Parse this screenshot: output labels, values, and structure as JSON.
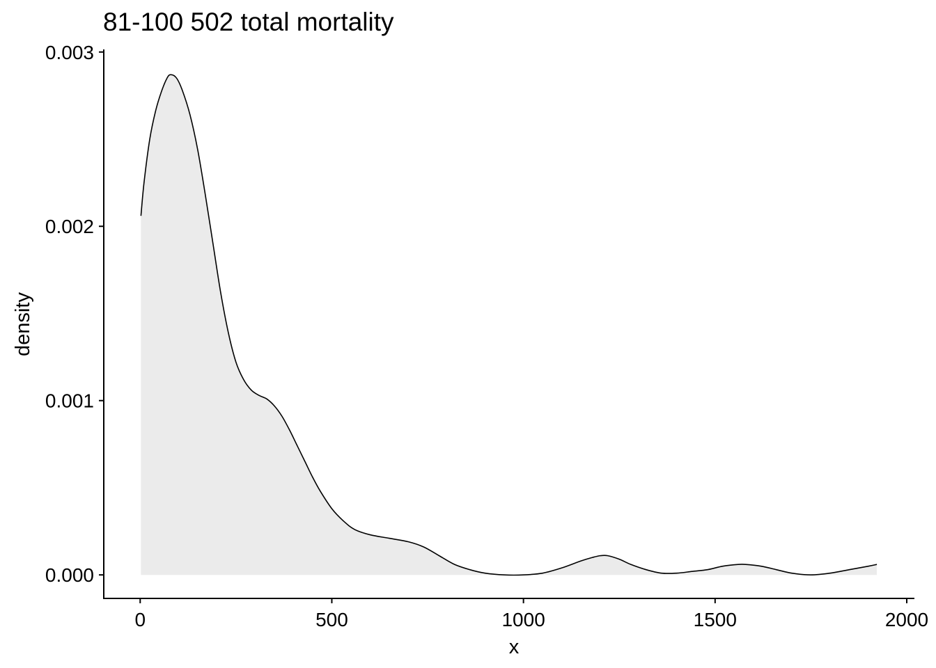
{
  "chart_data": {
    "type": "area",
    "title": "81-100 502 total mortality",
    "xlabel": "x",
    "ylabel": "density",
    "xlim": [
      -95,
      2020
    ],
    "ylim": [
      -0.000135,
      0.003015
    ],
    "x_ticks": [
      0,
      500,
      1000,
      1500,
      2000
    ],
    "x_tick_labels": [
      "0",
      "500",
      "1000",
      "1500",
      "2000"
    ],
    "y_ticks": [
      0,
      0.001,
      0.002,
      0.003
    ],
    "y_tick_labels": [
      "0.000",
      "0.001",
      "0.002",
      "0.003"
    ],
    "grid": false,
    "legend": "none",
    "fill_color": "#ebebeb",
    "line_color": "#000000",
    "series": [
      {
        "x": [
          2,
          10,
          25,
          40,
          55,
          70,
          80,
          95,
          110,
          130,
          150,
          170,
          190,
          210,
          230,
          250,
          270,
          290,
          310,
          330,
          350,
          370,
          390,
          410,
          430,
          450,
          470,
          500,
          530,
          560,
          600,
          650,
          700,
          740,
          780,
          820,
          860,
          900,
          950,
          1000,
          1050,
          1100,
          1150,
          1180,
          1200,
          1220,
          1250,
          1280,
          1320,
          1360,
          1400,
          1440,
          1480,
          1520,
          1560,
          1580,
          1620,
          1660,
          1700,
          1750,
          1800,
          1850,
          1900,
          1922
        ],
        "y": [
          0.00206,
          0.00225,
          0.0025,
          0.00266,
          0.00277,
          0.00285,
          0.00287,
          0.00285,
          0.00278,
          0.00264,
          0.00244,
          0.00218,
          0.0019,
          0.00162,
          0.00139,
          0.00122,
          0.00112,
          0.00106,
          0.00103,
          0.00101,
          0.00097,
          0.00091,
          0.00083,
          0.00074,
          0.00065,
          0.00056,
          0.00048,
          0.00038,
          0.00031,
          0.00026,
          0.00023,
          0.00021,
          0.00019,
          0.00016,
          0.00011,
          6e-05,
          3e-05,
          1e-05,
          0.0,
          0.0,
          1e-05,
          4e-05,
          8e-05,
          0.0001,
          0.00011,
          0.00011,
          9e-05,
          6e-05,
          3e-05,
          1e-05,
          1e-05,
          2e-05,
          3e-05,
          5e-05,
          6e-05,
          6e-05,
          5e-05,
          3e-05,
          1e-05,
          0.0,
          1e-05,
          3e-05,
          5e-05,
          6e-05
        ]
      }
    ]
  }
}
